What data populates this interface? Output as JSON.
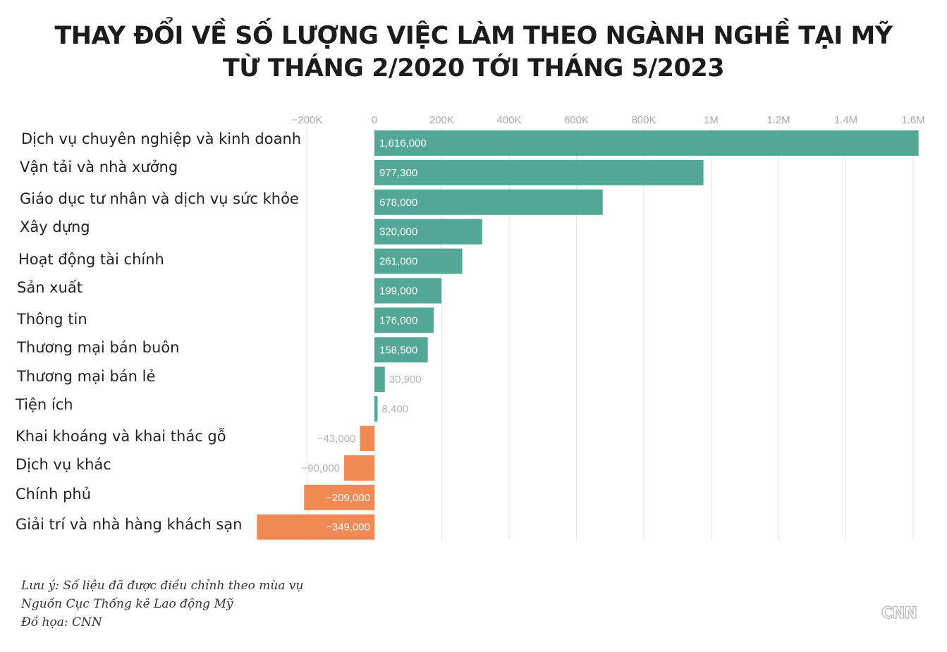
{
  "title": {
    "line1": "THAY ĐỔI VỀ SỐ LƯỢNG VIỆC LÀM THEO NGÀNH NGHỀ TẠI MỸ",
    "line2": "TỪ THÁNG 2/2020 TỚI THÁNG 5/2023"
  },
  "footer": {
    "note": "Lưu ý: Số liệu đã được điều chỉnh theo mùa vụ",
    "source": "Nguồn Cục Thống kê Lao động Mỹ",
    "credit": "Đồ họa: CNN"
  },
  "logo": "CNN",
  "colors": {
    "positive": "#53a897",
    "negative": "#f28a55",
    "grid": "#e6e6e6"
  },
  "chart_data": {
    "type": "bar",
    "orientation": "horizontal",
    "categories": [
      "Dịch vụ chuyên nghiệp và kinh doanh",
      "Vận tải và nhà xưởng",
      "Giáo dục tư nhân và dịch vụ sức khỏe",
      "Xây dựng",
      "Hoạt động tài chính",
      "Sản xuất",
      "Thông tin",
      "Thương mại bán buôn",
      "Thương mại bán lẻ",
      "Tiện ích",
      "Khai khoáng và khai thác gỗ",
      "Dịch vụ khác",
      "Chính phủ",
      "Giải trí và nhà hàng khách sạn"
    ],
    "values": [
      1616000,
      977300,
      678000,
      320000,
      261000,
      199000,
      176000,
      158500,
      30900,
      8400,
      -43000,
      -90000,
      -209000,
      -349000
    ],
    "value_labels": [
      "1,616,000",
      "977,300",
      "678,000",
      "320,000",
      "261,000",
      "199,000",
      "176,000",
      "158,500",
      "30,900",
      "8,400",
      "−43,000",
      "−90,000",
      "−209,000",
      "−349,000"
    ],
    "ticks": [
      -200000,
      0,
      200000,
      400000,
      600000,
      800000,
      1000000,
      1200000,
      1400000,
      1600000
    ],
    "tick_labels": [
      "−200K",
      "0",
      "200K",
      "400K",
      "600K",
      "800K",
      "1M",
      "1.2M",
      "1.4M",
      "1.6M"
    ],
    "xlim": [
      -349000,
      1616000
    ],
    "grid": true,
    "legend": "none"
  }
}
